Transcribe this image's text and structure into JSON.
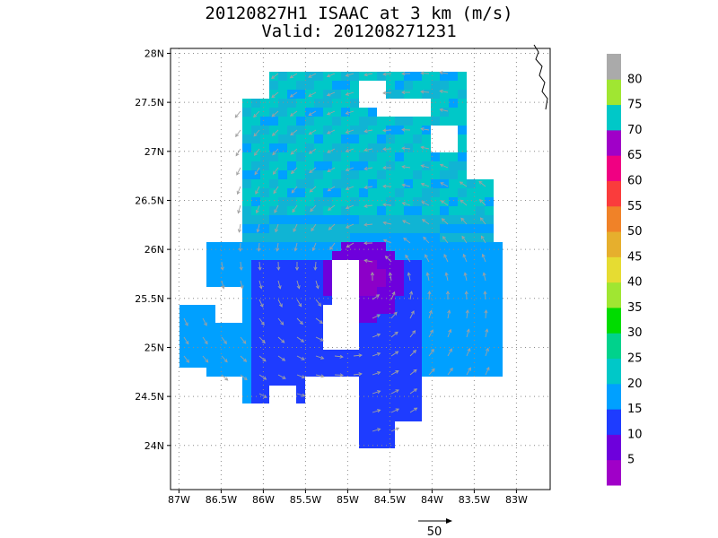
{
  "title": {
    "line1": "20120827H1 ISAAC at 3 km (m/s)",
    "line2": "Valid: 201208271231"
  },
  "axes": {
    "lon_labels": [
      "87W",
      "86.5W",
      "86W",
      "85.5W",
      "85W",
      "84.5W",
      "84W",
      "83.5W",
      "83W"
    ],
    "lon_values": [
      -87,
      -86.5,
      -86,
      -85.5,
      -85,
      -84.5,
      -84,
      -83.5,
      -83
    ],
    "lat_labels": [
      "28N",
      "27.5N",
      "27N",
      "26.5N",
      "26N",
      "25.5N",
      "25N",
      "24.5N",
      "24N"
    ],
    "lat_values": [
      28,
      27.5,
      27,
      26.5,
      26,
      25.5,
      25,
      24.5,
      24
    ],
    "lon_range": [
      -87.1,
      -82.6
    ],
    "lat_range": [
      23.55,
      28.05
    ],
    "grid": "dotted"
  },
  "colorbar": {
    "labels": [
      "5",
      "10",
      "15",
      "20",
      "25",
      "30",
      "35",
      "40",
      "45",
      "50",
      "55",
      "60",
      "65",
      "70",
      "75",
      "80"
    ],
    "colors": [
      "#a000c8",
      "#6e00dc",
      "#1e3cff",
      "#00a0ff",
      "#00c8c8",
      "#00d28c",
      "#00dc00",
      "#a0e632",
      "#e6dc32",
      "#e6af2d",
      "#f08228",
      "#fa3c3c",
      "#f00082",
      "#a000c8",
      "#00c8c8",
      "#a0e632",
      "#aaaaaa"
    ]
  },
  "wind_center": {
    "lon": -84.8,
    "lat": 25.7
  },
  "reference_vector": {
    "label": "50"
  },
  "colors": {
    "ocean": "#ffffff",
    "grid": "#8c8c8c",
    "arrow": "#a0a0a0",
    "frame": "#000000"
  }
}
